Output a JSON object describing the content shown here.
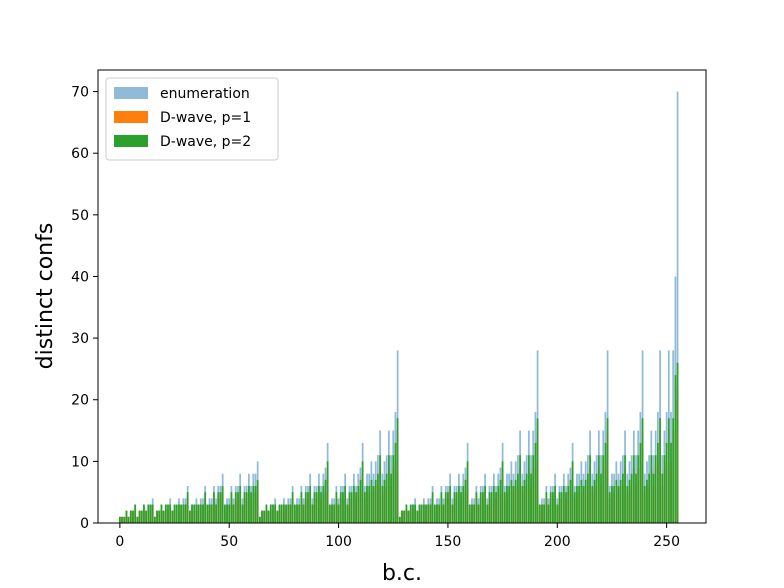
{
  "chart_data": {
    "type": "bar",
    "title": "",
    "xlabel": "b.c.",
    "ylabel": "distinct confs",
    "xlim": [
      -10,
      268
    ],
    "ylim": [
      0,
      73.5
    ],
    "xticks": [
      0,
      50,
      100,
      150,
      200,
      250
    ],
    "yticks": [
      0,
      10,
      20,
      30,
      40,
      50,
      60,
      70
    ],
    "legend_position": "top-left",
    "grid": false,
    "series": [
      {
        "name": "enumeration",
        "color": "#1f77b4",
        "alpha": 0.5,
        "x_start": 0,
        "values": [
          1,
          1,
          1,
          2,
          1,
          2,
          2,
          3,
          1,
          2,
          2,
          3,
          2,
          3,
          3,
          4,
          1,
          2,
          2,
          3,
          2,
          3,
          3,
          4,
          2,
          3,
          3,
          4,
          3,
          4,
          4,
          6,
          2,
          3,
          3,
          4,
          3,
          4,
          4,
          6,
          3,
          4,
          4,
          6,
          4,
          6,
          6,
          8,
          3,
          4,
          4,
          6,
          4,
          6,
          6,
          8,
          4,
          6,
          6,
          8,
          6,
          8,
          8,
          10,
          1,
          2,
          2,
          3,
          2,
          3,
          3,
          4,
          2,
          3,
          3,
          4,
          3,
          4,
          4,
          6,
          3,
          4,
          4,
          6,
          4,
          6,
          6,
          8,
          4,
          6,
          6,
          8,
          6,
          8,
          9,
          13,
          3,
          4,
          4,
          6,
          4,
          6,
          6,
          8,
          4,
          6,
          6,
          8,
          6,
          8,
          9,
          13,
          6,
          8,
          8,
          10,
          8,
          10,
          11,
          15,
          8,
          10,
          11,
          15,
          11,
          15,
          18,
          28,
          1,
          2,
          2,
          3,
          2,
          3,
          3,
          4,
          2,
          3,
          3,
          4,
          3,
          4,
          4,
          6,
          3,
          4,
          4,
          6,
          4,
          6,
          6,
          8,
          4,
          6,
          6,
          8,
          6,
          8,
          9,
          13,
          3,
          4,
          4,
          6,
          4,
          6,
          6,
          8,
          4,
          6,
          6,
          8,
          6,
          8,
          9,
          13,
          6,
          8,
          8,
          10,
          8,
          10,
          11,
          15,
          8,
          10,
          11,
          15,
          11,
          15,
          18,
          28,
          3,
          4,
          4,
          6,
          4,
          6,
          6,
          8,
          4,
          6,
          6,
          8,
          6,
          8,
          9,
          13,
          6,
          8,
          8,
          10,
          8,
          10,
          11,
          15,
          8,
          10,
          11,
          15,
          11,
          15,
          18,
          28,
          6,
          8,
          8,
          10,
          8,
          10,
          11,
          15,
          8,
          10,
          11,
          15,
          11,
          15,
          18,
          28,
          8,
          10,
          11,
          15,
          11,
          15,
          18,
          28,
          11,
          15,
          18,
          28,
          18,
          28,
          40,
          70
        ]
      },
      {
        "name": "D-wave, p=1",
        "color": "#ff7f0e",
        "alpha": 1,
        "x_start": 0,
        "values": [
          1,
          1,
          1,
          2,
          1,
          2,
          2,
          2,
          1,
          2,
          2,
          2,
          2,
          2,
          2,
          3,
          1,
          2,
          2,
          2,
          2,
          2,
          2,
          3,
          2,
          2,
          2,
          3,
          2,
          3,
          3,
          4,
          2,
          2,
          2,
          3,
          2,
          3,
          3,
          4,
          2,
          3,
          3,
          4,
          3,
          4,
          4,
          5,
          2,
          3,
          3,
          4,
          3,
          4,
          4,
          5,
          3,
          4,
          4,
          5,
          4,
          5,
          5,
          6,
          1,
          2,
          2,
          2,
          2,
          2,
          2,
          3,
          2,
          2,
          2,
          3,
          2,
          3,
          3,
          4,
          2,
          3,
          3,
          4,
          3,
          4,
          4,
          5,
          3,
          4,
          4,
          5,
          4,
          5,
          5,
          8,
          2,
          3,
          3,
          4,
          3,
          4,
          4,
          5,
          3,
          4,
          4,
          5,
          4,
          5,
          5,
          8,
          4,
          5,
          5,
          6,
          5,
          6,
          6,
          9,
          5,
          6,
          6,
          9,
          6,
          9,
          10,
          15,
          1,
          2,
          2,
          2,
          2,
          2,
          2,
          3,
          2,
          2,
          2,
          3,
          2,
          3,
          3,
          4,
          2,
          3,
          3,
          4,
          3,
          4,
          4,
          5,
          3,
          4,
          4,
          5,
          4,
          5,
          5,
          8,
          2,
          3,
          3,
          4,
          3,
          4,
          4,
          5,
          3,
          4,
          4,
          5,
          4,
          5,
          5,
          8,
          4,
          5,
          5,
          6,
          5,
          6,
          6,
          9,
          5,
          6,
          6,
          9,
          6,
          9,
          10,
          15,
          2,
          3,
          3,
          4,
          3,
          4,
          4,
          5,
          3,
          4,
          4,
          5,
          4,
          5,
          5,
          8,
          4,
          5,
          5,
          6,
          5,
          6,
          6,
          9,
          5,
          6,
          6,
          9,
          6,
          9,
          10,
          15,
          4,
          5,
          5,
          6,
          5,
          6,
          6,
          9,
          5,
          6,
          6,
          9,
          6,
          9,
          10,
          15,
          5,
          6,
          6,
          9,
          6,
          9,
          10,
          15,
          6,
          9,
          10,
          15,
          10,
          15,
          20,
          22
        ]
      },
      {
        "name": "D-wave, p=2",
        "color": "#2ca02c",
        "alpha": 1,
        "x_start": 0,
        "values": [
          1,
          1,
          1,
          2,
          1,
          2,
          2,
          3,
          1,
          2,
          2,
          3,
          2,
          3,
          3,
          3,
          1,
          2,
          2,
          3,
          2,
          3,
          3,
          3,
          2,
          3,
          3,
          3,
          3,
          3,
          3,
          5,
          2,
          3,
          3,
          3,
          3,
          3,
          3,
          5,
          3,
          3,
          3,
          5,
          3,
          5,
          5,
          6,
          3,
          3,
          3,
          5,
          3,
          5,
          5,
          6,
          3,
          5,
          5,
          6,
          5,
          6,
          6,
          7,
          1,
          2,
          2,
          3,
          2,
          3,
          3,
          3,
          2,
          3,
          3,
          3,
          3,
          3,
          3,
          5,
          3,
          3,
          3,
          5,
          3,
          5,
          5,
          6,
          3,
          5,
          5,
          6,
          5,
          6,
          7,
          10,
          3,
          3,
          3,
          5,
          3,
          5,
          5,
          6,
          3,
          5,
          5,
          6,
          5,
          6,
          7,
          10,
          5,
          6,
          6,
          7,
          6,
          7,
          8,
          11,
          6,
          7,
          8,
          11,
          8,
          11,
          13,
          17,
          1,
          2,
          2,
          3,
          2,
          3,
          3,
          3,
          2,
          3,
          3,
          3,
          3,
          3,
          3,
          5,
          3,
          3,
          3,
          5,
          3,
          5,
          5,
          6,
          3,
          5,
          5,
          6,
          5,
          6,
          7,
          10,
          3,
          3,
          3,
          5,
          3,
          5,
          5,
          6,
          3,
          5,
          5,
          6,
          5,
          6,
          7,
          10,
          5,
          6,
          6,
          7,
          6,
          7,
          8,
          11,
          6,
          7,
          8,
          11,
          8,
          11,
          13,
          17,
          3,
          3,
          3,
          5,
          3,
          5,
          5,
          6,
          3,
          5,
          5,
          6,
          5,
          6,
          7,
          10,
          5,
          6,
          6,
          7,
          6,
          7,
          8,
          11,
          6,
          7,
          8,
          11,
          8,
          11,
          13,
          17,
          5,
          6,
          6,
          7,
          6,
          7,
          8,
          11,
          6,
          7,
          8,
          11,
          8,
          11,
          13,
          17,
          6,
          7,
          8,
          11,
          8,
          11,
          13,
          17,
          8,
          11,
          13,
          17,
          13,
          17,
          24,
          26
        ]
      }
    ]
  }
}
